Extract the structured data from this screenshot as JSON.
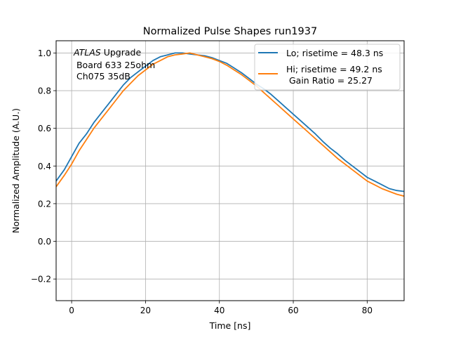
{
  "chart_data": {
    "type": "line",
    "title": "Normalized Pulse Shapes run1937",
    "xlabel": "Time [ns]",
    "ylabel": "Normalized Amplitude (A.U.)",
    "xlim": [
      -4.2,
      90
    ],
    "ylim": [
      -0.315,
      1.065
    ],
    "xticks": [
      0,
      20,
      40,
      60,
      80
    ],
    "yticks": [
      -0.2,
      0.0,
      0.2,
      0.4,
      0.6,
      0.8,
      1.0
    ],
    "xtick_labels": [
      "0",
      "20",
      "40",
      "60",
      "80"
    ],
    "ytick_labels": [
      "−0.2",
      "0.0",
      "0.2",
      "0.4",
      "0.6",
      "0.8",
      "1.0"
    ],
    "grid": true,
    "legend_position": "upper right",
    "annotation": {
      "italic": "ATLAS",
      "rest": " Upgrade",
      "line2": " Board 633 25ohm",
      "line3": " Ch075 35dB"
    },
    "series": [
      {
        "name": "Lo; risetime = 48.3 ns",
        "color": "#1f77b4",
        "x": [
          -4.2,
          -2,
          0,
          2,
          4,
          6,
          8,
          10,
          12,
          14,
          16,
          18,
          20,
          22,
          24,
          26,
          28,
          30,
          32,
          34,
          36,
          38,
          40,
          42,
          44,
          46,
          48,
          50,
          52,
          54,
          56,
          58,
          60,
          62,
          64,
          66,
          68,
          70,
          72,
          74,
          76,
          78,
          80,
          82,
          84,
          86,
          88,
          90
        ],
        "values": [
          0.32,
          0.38,
          0.45,
          0.52,
          0.57,
          0.63,
          0.68,
          0.73,
          0.78,
          0.83,
          0.87,
          0.9,
          0.93,
          0.96,
          0.98,
          0.99,
          1.0,
          1.0,
          0.995,
          0.99,
          0.985,
          0.975,
          0.96,
          0.945,
          0.92,
          0.895,
          0.865,
          0.835,
          0.81,
          0.78,
          0.745,
          0.71,
          0.675,
          0.64,
          0.605,
          0.57,
          0.53,
          0.495,
          0.465,
          0.43,
          0.4,
          0.37,
          0.34,
          0.32,
          0.3,
          0.28,
          0.27,
          0.265
        ]
      },
      {
        "name": "Hi; risetime = 49.2 ns\n Gain Ratio = 25.27",
        "color": "#ff7f0e",
        "x": [
          -4.2,
          -2,
          0,
          2,
          4,
          6,
          8,
          10,
          12,
          14,
          16,
          18,
          20,
          22,
          24,
          26,
          28,
          30,
          32,
          34,
          36,
          38,
          40,
          42,
          44,
          46,
          48,
          50,
          52,
          54,
          56,
          58,
          60,
          62,
          64,
          66,
          68,
          70,
          72,
          74,
          76,
          78,
          80,
          82,
          84,
          86,
          88,
          90
        ],
        "values": [
          0.29,
          0.35,
          0.41,
          0.48,
          0.54,
          0.6,
          0.65,
          0.7,
          0.75,
          0.8,
          0.84,
          0.88,
          0.91,
          0.94,
          0.96,
          0.98,
          0.99,
          0.995,
          1.0,
          0.99,
          0.98,
          0.97,
          0.955,
          0.935,
          0.91,
          0.885,
          0.855,
          0.825,
          0.79,
          0.755,
          0.72,
          0.685,
          0.65,
          0.615,
          0.58,
          0.545,
          0.51,
          0.475,
          0.44,
          0.41,
          0.38,
          0.35,
          0.32,
          0.3,
          0.28,
          0.265,
          0.25,
          0.24
        ]
      }
    ]
  }
}
